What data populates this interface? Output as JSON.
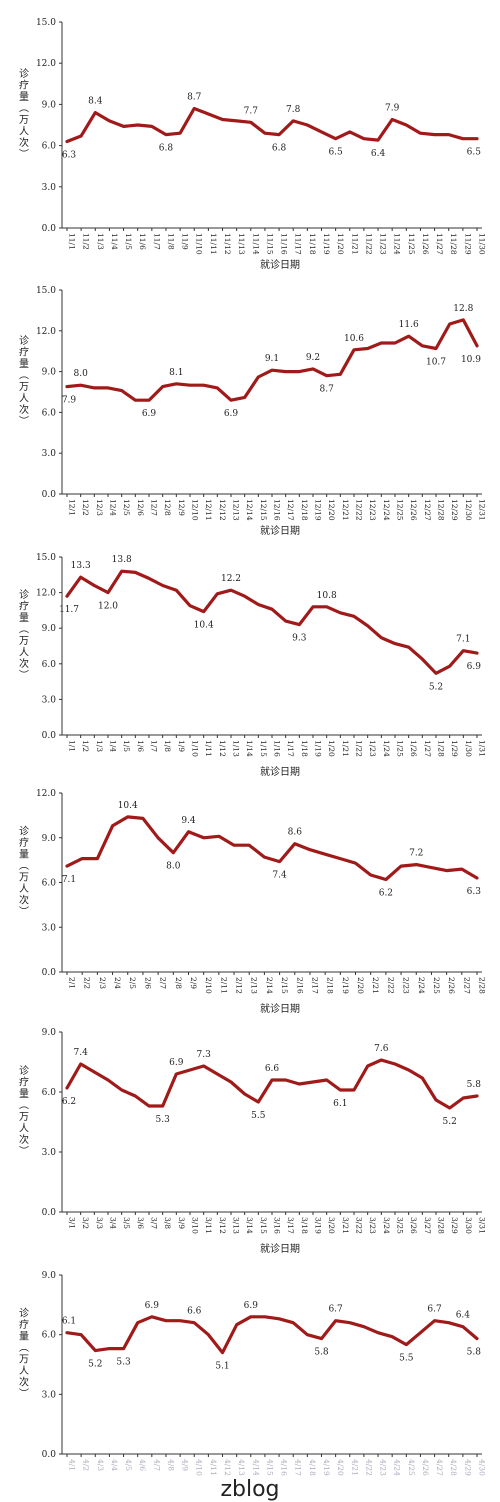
{
  "chart_data": [
    {
      "type": "line",
      "ylabel": "诊疗量（万人次）",
      "xlabel": "就诊日期",
      "ylim": [
        0,
        15
      ],
      "yticks": [
        "0.0",
        "3.0",
        "6.0",
        "9.0",
        "12.0",
        "15.0"
      ],
      "x": [
        "11/1",
        "11/2",
        "11/3",
        "11/4",
        "11/5",
        "11/6",
        "11/7",
        "11/8",
        "11/9",
        "11/10",
        "11/11",
        "11/12",
        "11/13",
        "11/14",
        "11/15",
        "11/16",
        "11/17",
        "11/18",
        "11/19",
        "11/20",
        "11/21",
        "11/22",
        "11/23",
        "11/24",
        "11/25",
        "11/26",
        "11/27",
        "11/28",
        "11/29",
        "11/30"
      ],
      "values": [
        6.3,
        6.7,
        8.4,
        7.8,
        7.4,
        7.5,
        7.4,
        6.8,
        6.9,
        8.7,
        8.3,
        7.9,
        7.8,
        7.7,
        6.9,
        6.8,
        7.8,
        7.5,
        7.0,
        6.5,
        7.0,
        6.5,
        6.4,
        7.9,
        7.5,
        6.9,
        6.8,
        6.8,
        6.5,
        6.5
      ],
      "labels": [
        {
          "i": 0,
          "text": "6.3",
          "pos": "below"
        },
        {
          "i": 2,
          "text": "8.4",
          "pos": "above"
        },
        {
          "i": 7,
          "text": "6.8",
          "pos": "below"
        },
        {
          "i": 9,
          "text": "8.7",
          "pos": "above"
        },
        {
          "i": 13,
          "text": "7.7",
          "pos": "above"
        },
        {
          "i": 15,
          "text": "6.8",
          "pos": "below"
        },
        {
          "i": 16,
          "text": "7.8",
          "pos": "above"
        },
        {
          "i": 19,
          "text": "6.5",
          "pos": "below"
        },
        {
          "i": 22,
          "text": "6.4",
          "pos": "below"
        },
        {
          "i": 23,
          "text": "7.9",
          "pos": "above"
        },
        {
          "i": 29,
          "text": "6.5",
          "pos": "below"
        }
      ]
    },
    {
      "type": "line",
      "ylabel": "诊疗量（万人次）",
      "xlabel": "就诊日期",
      "ylim": [
        0,
        15
      ],
      "yticks": [
        "0.0",
        "3.0",
        "6.0",
        "9.0",
        "12.0",
        "15.0"
      ],
      "x": [
        "12/1",
        "12/2",
        "12/3",
        "12/4",
        "12/5",
        "12/6",
        "12/7",
        "12/8",
        "12/9",
        "12/10",
        "12/11",
        "12/12",
        "12/13",
        "12/14",
        "12/15",
        "12/16",
        "12/17",
        "12/18",
        "12/19",
        "12/20",
        "12/21",
        "12/22",
        "12/23",
        "12/24",
        "12/25",
        "12/26",
        "12/27",
        "12/28",
        "12/29",
        "12/30",
        "12/31"
      ],
      "values": [
        7.9,
        8.0,
        7.8,
        7.8,
        7.6,
        6.9,
        6.9,
        7.9,
        8.1,
        8.0,
        8.0,
        7.8,
        6.9,
        7.1,
        8.6,
        9.1,
        9.0,
        9.0,
        9.2,
        8.7,
        8.8,
        10.6,
        10.7,
        11.1,
        11.1,
        11.6,
        10.9,
        10.7,
        12.5,
        12.8,
        10.9
      ],
      "labels": [
        {
          "i": 0,
          "text": "7.9",
          "pos": "below"
        },
        {
          "i": 1,
          "text": "8.0",
          "pos": "above"
        },
        {
          "i": 6,
          "text": "6.9",
          "pos": "below"
        },
        {
          "i": 8,
          "text": "8.1",
          "pos": "above"
        },
        {
          "i": 12,
          "text": "6.9",
          "pos": "below"
        },
        {
          "i": 15,
          "text": "9.1",
          "pos": "above"
        },
        {
          "i": 18,
          "text": "9.2",
          "pos": "above"
        },
        {
          "i": 19,
          "text": "8.7",
          "pos": "below"
        },
        {
          "i": 21,
          "text": "10.6",
          "pos": "above"
        },
        {
          "i": 25,
          "text": "11.6",
          "pos": "above"
        },
        {
          "i": 27,
          "text": "10.7",
          "pos": "below"
        },
        {
          "i": 29,
          "text": "12.8",
          "pos": "above"
        },
        {
          "i": 30,
          "text": "10.9",
          "pos": "below"
        }
      ]
    },
    {
      "type": "line",
      "ylabel": "诊疗量（万人次）",
      "xlabel": "就诊日期",
      "ylim": [
        0,
        15
      ],
      "yticks": [
        "0.0",
        "3.0",
        "6.0",
        "9.0",
        "12.0",
        "15.0"
      ],
      "x": [
        "1/1",
        "1/2",
        "1/3",
        "1/4",
        "1/5",
        "1/6",
        "1/7",
        "1/8",
        "1/9",
        "1/10",
        "1/11",
        "1/12",
        "1/13",
        "1/14",
        "1/15",
        "1/16",
        "1/17",
        "1/18",
        "1/19",
        "1/20",
        "1/21",
        "1/22",
        "1/23",
        "1/24",
        "1/25",
        "1/26",
        "1/27",
        "1/28",
        "1/29",
        "1/30",
        "1/31"
      ],
      "values": [
        11.7,
        13.3,
        12.6,
        12.0,
        13.8,
        13.7,
        13.2,
        12.6,
        12.2,
        10.9,
        10.4,
        11.9,
        12.2,
        11.7,
        11.0,
        10.6,
        9.6,
        9.3,
        10.8,
        10.8,
        10.3,
        10.0,
        9.2,
        8.2,
        7.7,
        7.4,
        6.4,
        5.2,
        5.8,
        7.1,
        6.9
      ],
      "labels": [
        {
          "i": 0,
          "text": "11.7",
          "pos": "below"
        },
        {
          "i": 1,
          "text": "13.3",
          "pos": "above"
        },
        {
          "i": 3,
          "text": "12.0",
          "pos": "below"
        },
        {
          "i": 4,
          "text": "13.8",
          "pos": "above"
        },
        {
          "i": 10,
          "text": "10.4",
          "pos": "below"
        },
        {
          "i": 12,
          "text": "12.2",
          "pos": "above"
        },
        {
          "i": 17,
          "text": "9.3",
          "pos": "below"
        },
        {
          "i": 19,
          "text": "10.8",
          "pos": "above"
        },
        {
          "i": 27,
          "text": "5.2",
          "pos": "below"
        },
        {
          "i": 29,
          "text": "7.1",
          "pos": "above"
        },
        {
          "i": 30,
          "text": "6.9",
          "pos": "below"
        }
      ]
    },
    {
      "type": "line",
      "ylabel": "诊疗量（万人次）",
      "xlabel": "就诊日期",
      "ylim": [
        0,
        12
      ],
      "yticks": [
        "0.0",
        "3.0",
        "6.0",
        "9.0",
        "12.0"
      ],
      "x": [
        "2/1",
        "2/2",
        "2/3",
        "2/4",
        "2/5",
        "2/6",
        "2/7",
        "2/8",
        "2/9",
        "2/10",
        "2/11",
        "2/12",
        "2/13",
        "2/14",
        "2/15",
        "2/16",
        "2/17",
        "2/18",
        "2/19",
        "2/20",
        "2/21",
        "2/22",
        "2/23",
        "2/24",
        "2/25",
        "2/26",
        "2/27",
        "2/28"
      ],
      "values": [
        7.1,
        7.6,
        7.6,
        9.8,
        10.4,
        10.3,
        9.0,
        8.0,
        9.4,
        9.0,
        9.1,
        8.5,
        8.5,
        7.7,
        7.4,
        8.6,
        8.2,
        7.9,
        7.6,
        7.3,
        6.5,
        6.2,
        7.1,
        7.2,
        7.0,
        6.8,
        6.9,
        6.3
      ],
      "labels": [
        {
          "i": 0,
          "text": "7.1",
          "pos": "below"
        },
        {
          "i": 4,
          "text": "10.4",
          "pos": "above"
        },
        {
          "i": 7,
          "text": "8.0",
          "pos": "below"
        },
        {
          "i": 8,
          "text": "9.4",
          "pos": "above"
        },
        {
          "i": 14,
          "text": "7.4",
          "pos": "below"
        },
        {
          "i": 15,
          "text": "8.6",
          "pos": "above"
        },
        {
          "i": 21,
          "text": "6.2",
          "pos": "below"
        },
        {
          "i": 23,
          "text": "7.2",
          "pos": "above"
        },
        {
          "i": 27,
          "text": "6.3",
          "pos": "below"
        }
      ]
    },
    {
      "type": "line",
      "ylabel": "诊疗量（万人次）",
      "xlabel": "就诊日期",
      "ylim": [
        0,
        9
      ],
      "yticks": [
        "0.0",
        "3.0",
        "6.0",
        "9.0"
      ],
      "x": [
        "3/1",
        "3/2",
        "3/3",
        "3/4",
        "3/5",
        "3/6",
        "3/7",
        "3/8",
        "3/9",
        "3/10",
        "3/11",
        "3/12",
        "3/13",
        "3/14",
        "3/15",
        "3/16",
        "3/17",
        "3/18",
        "3/19",
        "3/20",
        "3/21",
        "3/22",
        "3/23",
        "3/24",
        "3/25",
        "3/26",
        "3/27",
        "3/28",
        "3/29",
        "3/30",
        "3/31"
      ],
      "values": [
        6.2,
        7.4,
        7.0,
        6.6,
        6.1,
        5.8,
        5.3,
        5.3,
        6.9,
        7.1,
        7.3,
        6.9,
        6.5,
        5.9,
        5.5,
        6.6,
        6.6,
        6.4,
        6.5,
        6.6,
        6.1,
        6.1,
        7.3,
        7.6,
        7.4,
        7.1,
        6.7,
        5.6,
        5.2,
        5.7,
        5.8
      ],
      "labels": [
        {
          "i": 0,
          "text": "6.2",
          "pos": "below"
        },
        {
          "i": 1,
          "text": "7.4",
          "pos": "above"
        },
        {
          "i": 7,
          "text": "5.3",
          "pos": "below"
        },
        {
          "i": 8,
          "text": "6.9",
          "pos": "above"
        },
        {
          "i": 10,
          "text": "7.3",
          "pos": "above"
        },
        {
          "i": 14,
          "text": "5.5",
          "pos": "below"
        },
        {
          "i": 15,
          "text": "6.6",
          "pos": "above"
        },
        {
          "i": 20,
          "text": "6.1",
          "pos": "below"
        },
        {
          "i": 23,
          "text": "7.6",
          "pos": "above"
        },
        {
          "i": 28,
          "text": "5.2",
          "pos": "below"
        },
        {
          "i": 30,
          "text": "5.8",
          "pos": "above"
        }
      ]
    },
    {
      "type": "line",
      "ylabel": "诊疗量（万人次）",
      "xlabel": "",
      "ylim": [
        0,
        9
      ],
      "yticks": [
        "0.0",
        "3.0",
        "6.0",
        "9.0"
      ],
      "faded_ticks": true,
      "x": [
        "4/1",
        "4/2",
        "4/3",
        "4/4",
        "4/5",
        "4/6",
        "4/7",
        "4/8",
        "4/9",
        "4/10",
        "4/11",
        "4/12",
        "4/13",
        "4/14",
        "4/15",
        "4/16",
        "4/17",
        "4/18",
        "4/19",
        "4/20",
        "4/21",
        "4/22",
        "4/23",
        "4/24",
        "4/25",
        "4/26",
        "4/27",
        "4/28",
        "4/29",
        "4/30"
      ],
      "values": [
        6.1,
        6.0,
        5.2,
        5.3,
        5.3,
        6.6,
        6.9,
        6.7,
        6.7,
        6.6,
        6.0,
        5.1,
        6.5,
        6.9,
        6.9,
        6.8,
        6.6,
        6.0,
        5.8,
        6.7,
        6.6,
        6.4,
        6.1,
        5.9,
        5.5,
        6.1,
        6.7,
        6.6,
        6.4,
        5.8
      ],
      "labels": [
        {
          "i": 0,
          "text": "6.1",
          "pos": "above"
        },
        {
          "i": 2,
          "text": "5.2",
          "pos": "below"
        },
        {
          "i": 4,
          "text": "5.3",
          "pos": "below"
        },
        {
          "i": 6,
          "text": "6.9",
          "pos": "above"
        },
        {
          "i": 9,
          "text": "6.6",
          "pos": "above"
        },
        {
          "i": 11,
          "text": "5.1",
          "pos": "below"
        },
        {
          "i": 13,
          "text": "6.9",
          "pos": "above"
        },
        {
          "i": 18,
          "text": "5.8",
          "pos": "below"
        },
        {
          "i": 19,
          "text": "6.7",
          "pos": "above"
        },
        {
          "i": 24,
          "text": "5.5",
          "pos": "below"
        },
        {
          "i": 26,
          "text": "6.7",
          "pos": "above"
        },
        {
          "i": 28,
          "text": "6.4",
          "pos": "above"
        },
        {
          "i": 29,
          "text": "5.8",
          "pos": "below"
        }
      ]
    }
  ],
  "watermark": "zblog",
  "colors": {
    "line": "#a01a1a",
    "axis": "#333333"
  }
}
